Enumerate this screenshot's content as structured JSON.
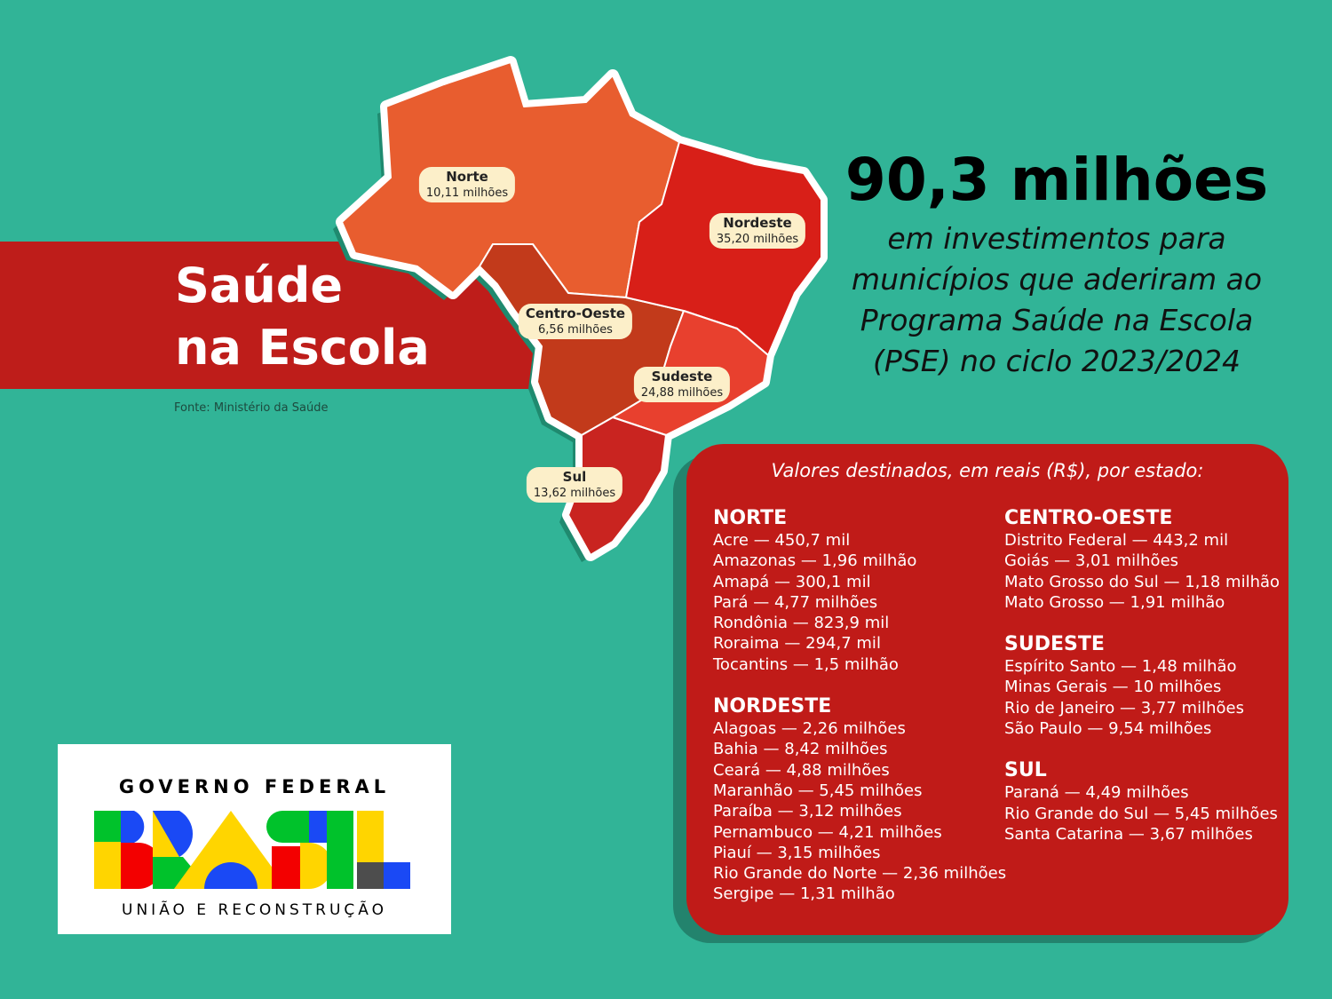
{
  "banner": {
    "title_line1": "Saúde",
    "title_line2": "na Escola",
    "source": "Fonte: Ministério da Saúde"
  },
  "headline": {
    "total": "90,3 milhões",
    "subtitle": [
      "em investimentos para",
      "municípios que aderiram ao",
      "Programa Saúde na Escola",
      "(PSE) no ciclo 2023/2024"
    ]
  },
  "map": {
    "colors": {
      "norte": "#e85d2f",
      "centro_oeste": "#c23a1b",
      "nordeste": "#d81f18",
      "sudeste": "#e8402e",
      "sul": "#c92420"
    },
    "labels": [
      {
        "region": "Norte",
        "value": "10,11 milhões"
      },
      {
        "region": "Nordeste",
        "value": "35,20 milhões"
      },
      {
        "region": "Centro-Oeste",
        "value": "6,56 milhões"
      },
      {
        "region": "Sudeste",
        "value": "24,88 milhões"
      },
      {
        "region": "Sul",
        "value": "13,62 milhões"
      }
    ]
  },
  "panel": {
    "title": "Valores destinados, em reais (R$), por estado:",
    "left": [
      {
        "name": "NORTE",
        "items": [
          "Acre — 450,7 mil",
          "Amazonas — 1,96 milhão",
          "Amapá — 300,1 mil",
          "Pará — 4,77 milhões",
          "Rondônia — 823,9 mil",
          "Roraima — 294,7 mil",
          "Tocantins — 1,5 milhão"
        ]
      },
      {
        "name": "NORDESTE",
        "items": [
          "Alagoas — 2,26 milhões",
          "Bahia — 8,42 milhões",
          "Ceará — 4,88 milhões",
          "Maranhão — 5,45 milhões",
          "Paraíba — 3,12 milhões",
          "Pernambuco — 4,21 milhões",
          "Piauí — 3,15 milhões",
          "Rio Grande do Norte — 2,36 milhões",
          "Sergipe — 1,31 milhão"
        ]
      }
    ],
    "right": [
      {
        "name": "CENTRO-OESTE",
        "items": [
          "Distrito Federal — 443,2 mil",
          "Goiás — 3,01 milhões",
          "Mato Grosso do Sul — 1,18 milhão",
          "Mato Grosso — 1,91 milhão"
        ]
      },
      {
        "name": "SUDESTE",
        "items": [
          "Espírito Santo — 1,48 milhão",
          "Minas Gerais — 10 milhões",
          "Rio de Janeiro — 3,77 milhões",
          "São Paulo — 9,54 milhões"
        ]
      },
      {
        "name": "SUL",
        "items": [
          "Paraná — 4,49 milhões",
          "Rio Grande do Sul — 5,45 milhões",
          "Santa Catarina — 3,67 milhões"
        ]
      }
    ]
  },
  "logo": {
    "top": "GOVERNO FEDERAL",
    "word": "BRASIL",
    "bottom": "UNIÃO E RECONSTRUÇÃO"
  }
}
